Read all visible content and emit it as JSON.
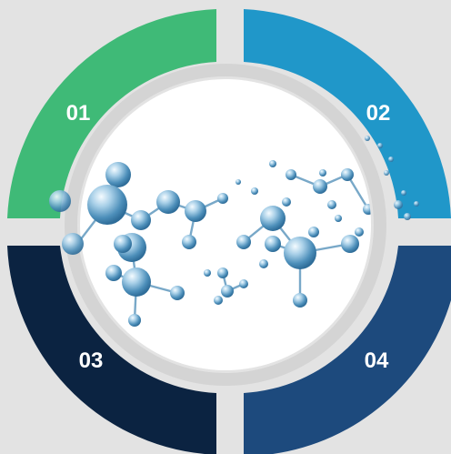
{
  "background": "#e3e3e3",
  "segments": [
    {
      "id": "01",
      "label": "01",
      "color": "#3fba77"
    },
    {
      "id": "02",
      "label": "02",
      "color": "#2097c9"
    },
    {
      "id": "03",
      "label": "03",
      "color": "#0b2341"
    },
    {
      "id": "04",
      "label": "04",
      "color": "#1d4a7d"
    }
  ],
  "center": {
    "image": "molecule-illustration",
    "fill": "#ffffff",
    "ring_color": "#d4d4d4",
    "molecule_color": "#5f9fc8"
  }
}
